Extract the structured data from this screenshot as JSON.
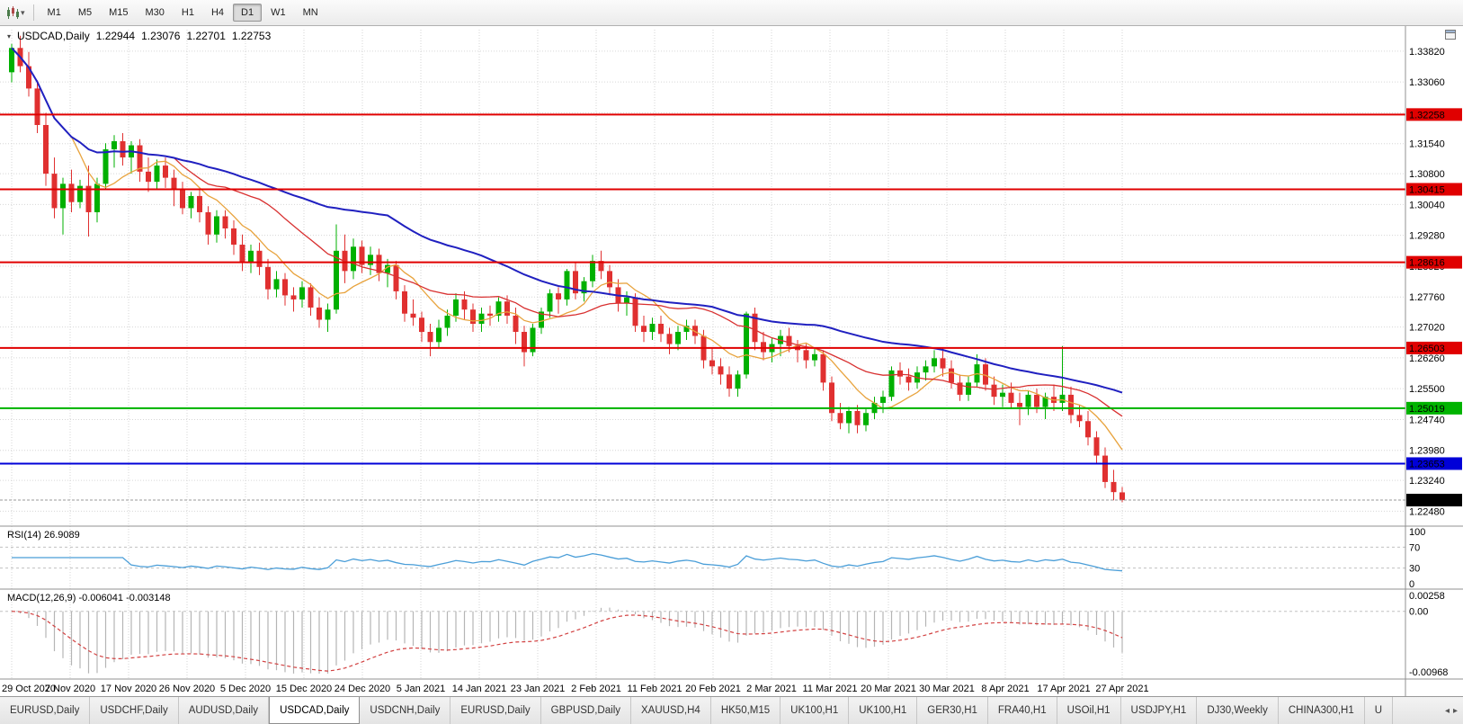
{
  "toolbar": {
    "timeframes": [
      "M1",
      "M5",
      "M15",
      "M30",
      "H1",
      "H4",
      "D1",
      "W1",
      "MN"
    ],
    "active_timeframe": "D1",
    "icons": [
      "candlestick-chart-icon",
      "caret-down-icon"
    ]
  },
  "chart_header": {
    "symbol_period": "USDCAD,Daily",
    "open": "1.22944",
    "high": "1.23076",
    "low": "1.22701",
    "close": "1.22753"
  },
  "levels": [
    {
      "label": "1.32258",
      "price": 1.32258,
      "color": "#e00000"
    },
    {
      "label": "1.30415",
      "price": 1.30415,
      "color": "#e00000"
    },
    {
      "label": "1.28616",
      "price": 1.28616,
      "color": "#e00000"
    },
    {
      "label": "1.26503",
      "price": 1.26503,
      "color": "#e00000"
    },
    {
      "label": "1.25019",
      "price": 1.25019,
      "color": "#00b300"
    },
    {
      "label": "1.23653",
      "price": 1.23653,
      "color": "#0000d8"
    }
  ],
  "current_price": {
    "label": "1.22753",
    "price": 1.22753,
    "badge_color": "#000000"
  },
  "indicators": {
    "rsi": {
      "label": "RSI(14) 26.9089",
      "period": 14,
      "value": 26.9089,
      "axis_ticks": [
        "100",
        "70",
        "30",
        "0"
      ],
      "dashed_levels": [
        70,
        30
      ],
      "line_color": "#4a9ed8"
    },
    "macd": {
      "label": "MACD(12,26,9) -0.006041 -0.003148",
      "fast": 12,
      "slow": 26,
      "signal_period": 9,
      "macd_value": "-0.006041",
      "signal_value": "-0.003148",
      "axis_ticks": [
        "0.00258",
        "0.00",
        "-0.00968"
      ],
      "hist_color": "#b5b5b5",
      "signal_color": "#d24040"
    }
  },
  "moving_averages": [
    {
      "name": "fast-ma",
      "period": 8,
      "color": "#e8a33d"
    },
    {
      "name": "medium-ma",
      "period": 20,
      "color": "#d83030"
    },
    {
      "name": "slow-ma",
      "period": 45,
      "color": "#2020c0"
    }
  ],
  "dates": [
    "29 Oct 2020",
    "7 Nov 2020",
    "17 Nov 2020",
    "26 Nov 2020",
    "5 Dec 2020",
    "15 Dec 2020",
    "24 Dec 2020",
    "5 Jan 2021",
    "14 Jan 2021",
    "23 Jan 2021",
    "2 Feb 2021",
    "11 Feb 2021",
    "20 Feb 2021",
    "2 Mar 2021",
    "11 Mar 2021",
    "20 Mar 2021",
    "30 Mar 2021",
    "8 Apr 2021",
    "17 Apr 2021",
    "27 Apr 2021"
  ],
  "tabs": {
    "active_index": 3,
    "scroll_icons": [
      "tabs-scroll-left-icon",
      "tabs-scroll-right-icon"
    ],
    "items": [
      {
        "label": "EURUSD,Daily"
      },
      {
        "label": "USDCHF,Daily"
      },
      {
        "label": "AUDUSD,Daily"
      },
      {
        "label": "USDCAD,Daily"
      },
      {
        "label": "USDCNH,Daily"
      },
      {
        "label": "EURUSD,Daily"
      },
      {
        "label": "GBPUSD,Daily"
      },
      {
        "label": "XAUUSD,H4"
      },
      {
        "label": "HK50,M15"
      },
      {
        "label": "UK100,H1"
      },
      {
        "label": "UK100,H1"
      },
      {
        "label": "GER30,H1"
      },
      {
        "label": "FRA40,H1"
      },
      {
        "label": "USOil,H1"
      },
      {
        "label": "USDJPY,H1"
      },
      {
        "label": "DJ30,Weekly"
      },
      {
        "label": "CHINA300,H1"
      },
      {
        "label": "U"
      }
    ]
  },
  "colors": {
    "up": "#00b000",
    "down": "#e03030",
    "grid": "#d6d6d6",
    "background": "#ffffff",
    "axis_line": "#909090"
  },
  "chart_data": {
    "type": "candlestick",
    "symbol": "USDCAD",
    "timeframe": "Daily",
    "title": "USDCAD,Daily 1.22944 1.23076 1.22701 1.22753",
    "x_range": [
      "29 Oct 2020",
      "30 Apr 2021"
    ],
    "y_ticks": [
      "1.33820",
      "1.33060",
      "1.32300",
      "1.31540",
      "1.30800",
      "1.30040",
      "1.29280",
      "1.28520",
      "1.27760",
      "1.27020",
      "1.26260",
      "1.25500",
      "1.24740",
      "1.23980",
      "1.23240",
      "1.22480"
    ],
    "y_limits": [
      1.222,
      1.3435
    ],
    "grid": true,
    "candles": [
      [
        1.333,
        1.34,
        1.3305,
        1.339
      ],
      [
        1.339,
        1.342,
        1.333,
        1.3345
      ],
      [
        1.3345,
        1.338,
        1.327,
        1.329
      ],
      [
        1.329,
        1.331,
        1.318,
        1.32
      ],
      [
        1.32,
        1.323,
        1.305,
        1.308
      ],
      [
        1.308,
        1.312,
        1.297,
        1.2995
      ],
      [
        1.2995,
        1.307,
        1.293,
        1.3055
      ],
      [
        1.3055,
        1.309,
        1.2985,
        1.301
      ],
      [
        1.301,
        1.3065,
        1.2995,
        1.305
      ],
      [
        1.305,
        1.31,
        1.2925,
        1.2985
      ],
      [
        1.2985,
        1.307,
        1.296,
        1.3055
      ],
      [
        1.3055,
        1.3155,
        1.304,
        1.314
      ],
      [
        1.314,
        1.3175,
        1.3095,
        1.316
      ],
      [
        1.316,
        1.318,
        1.31,
        1.312
      ],
      [
        1.312,
        1.316,
        1.308,
        1.315
      ],
      [
        1.315,
        1.3165,
        1.306,
        1.3085
      ],
      [
        1.3085,
        1.312,
        1.3035,
        1.306
      ],
      [
        1.306,
        1.3115,
        1.304,
        1.31
      ],
      [
        1.31,
        1.312,
        1.3045,
        1.307
      ],
      [
        1.307,
        1.309,
        1.3,
        1.304
      ],
      [
        1.304,
        1.306,
        1.298,
        1.2995
      ],
      [
        1.2995,
        1.3035,
        1.297,
        1.3025
      ],
      [
        1.3025,
        1.304,
        1.296,
        1.2985
      ],
      [
        1.2985,
        1.3,
        1.2905,
        1.293
      ],
      [
        1.293,
        1.299,
        1.291,
        1.2975
      ],
      [
        1.2975,
        1.299,
        1.292,
        1.2945
      ],
      [
        1.2945,
        1.2965,
        1.288,
        1.2905
      ],
      [
        1.2905,
        1.293,
        1.284,
        1.286
      ],
      [
        1.286,
        1.2905,
        1.2835,
        1.289
      ],
      [
        1.289,
        1.291,
        1.283,
        1.285
      ],
      [
        1.285,
        1.287,
        1.277,
        1.2795
      ],
      [
        1.2795,
        1.284,
        1.2775,
        1.282
      ],
      [
        1.282,
        1.2835,
        1.2755,
        1.278
      ],
      [
        1.278,
        1.28,
        1.274,
        1.277
      ],
      [
        1.277,
        1.2815,
        1.275,
        1.28
      ],
      [
        1.28,
        1.281,
        1.273,
        1.275
      ],
      [
        1.275,
        1.2775,
        1.27,
        1.272
      ],
      [
        1.272,
        1.276,
        1.269,
        1.2745
      ],
      [
        1.2745,
        1.2955,
        1.2735,
        1.289
      ],
      [
        1.289,
        1.293,
        1.281,
        1.284
      ],
      [
        1.284,
        1.292,
        1.282,
        1.29
      ],
      [
        1.29,
        1.2915,
        1.2835,
        1.2855
      ],
      [
        1.2855,
        1.29,
        1.283,
        1.288
      ],
      [
        1.288,
        1.2895,
        1.2815,
        1.2835
      ],
      [
        1.2835,
        1.287,
        1.28,
        1.2855
      ],
      [
        1.2855,
        1.2865,
        1.277,
        1.279
      ],
      [
        1.279,
        1.2805,
        1.2715,
        1.2735
      ],
      [
        1.2735,
        1.277,
        1.2705,
        1.2725
      ],
      [
        1.2725,
        1.274,
        1.2665,
        1.269
      ],
      [
        1.269,
        1.271,
        1.263,
        1.2665
      ],
      [
        1.2665,
        1.272,
        1.265,
        1.27
      ],
      [
        1.27,
        1.2745,
        1.268,
        1.273
      ],
      [
        1.273,
        1.2785,
        1.2715,
        1.277
      ],
      [
        1.277,
        1.279,
        1.272,
        1.2745
      ],
      [
        1.2745,
        1.276,
        1.269,
        1.271
      ],
      [
        1.271,
        1.275,
        1.269,
        1.2735
      ],
      [
        1.2735,
        1.2755,
        1.2705,
        1.273
      ],
      [
        1.273,
        1.2775,
        1.2715,
        1.2765
      ],
      [
        1.2765,
        1.278,
        1.271,
        1.273
      ],
      [
        1.273,
        1.275,
        1.266,
        1.269
      ],
      [
        1.269,
        1.2705,
        1.2605,
        1.264
      ],
      [
        1.264,
        1.271,
        1.263,
        1.27
      ],
      [
        1.27,
        1.275,
        1.2685,
        1.274
      ],
      [
        1.274,
        1.2795,
        1.2725,
        1.2785
      ],
      [
        1.2785,
        1.28,
        1.2735,
        1.277
      ],
      [
        1.277,
        1.2845,
        1.2755,
        1.284
      ],
      [
        1.284,
        1.286,
        1.277,
        1.2785
      ],
      [
        1.2785,
        1.2825,
        1.2765,
        1.2815
      ],
      [
        1.2815,
        1.288,
        1.28,
        1.2865
      ],
      [
        1.2865,
        1.289,
        1.282,
        1.284
      ],
      [
        1.284,
        1.2855,
        1.278,
        1.28
      ],
      [
        1.28,
        1.282,
        1.274,
        1.276
      ],
      [
        1.276,
        1.279,
        1.273,
        1.2775
      ],
      [
        1.2775,
        1.2785,
        1.269,
        1.2705
      ],
      [
        1.2705,
        1.273,
        1.2665,
        1.269
      ],
      [
        1.269,
        1.2725,
        1.267,
        1.271
      ],
      [
        1.271,
        1.273,
        1.2665,
        1.2685
      ],
      [
        1.2685,
        1.27,
        1.2635,
        1.266
      ],
      [
        1.266,
        1.2705,
        1.2645,
        1.269
      ],
      [
        1.269,
        1.272,
        1.267,
        1.2705
      ],
      [
        1.2705,
        1.272,
        1.266,
        1.268
      ],
      [
        1.268,
        1.2695,
        1.26,
        1.262
      ],
      [
        1.262,
        1.265,
        1.2585,
        1.2605
      ],
      [
        1.2605,
        1.2625,
        1.256,
        1.2585
      ],
      [
        1.2585,
        1.2605,
        1.253,
        1.255
      ],
      [
        1.255,
        1.2595,
        1.253,
        1.2585
      ],
      [
        1.2585,
        1.274,
        1.2575,
        1.2735
      ],
      [
        1.2735,
        1.275,
        1.2645,
        1.2665
      ],
      [
        1.2665,
        1.269,
        1.262,
        1.264
      ],
      [
        1.264,
        1.2675,
        1.2615,
        1.266
      ],
      [
        1.266,
        1.2695,
        1.263,
        1.268
      ],
      [
        1.268,
        1.27,
        1.264,
        1.2655
      ],
      [
        1.2655,
        1.267,
        1.2615,
        1.2645
      ],
      [
        1.2645,
        1.266,
        1.26,
        1.262
      ],
      [
        1.262,
        1.265,
        1.2605,
        1.2635
      ],
      [
        1.2635,
        1.2645,
        1.2545,
        1.2565
      ],
      [
        1.2565,
        1.258,
        1.247,
        1.249
      ],
      [
        1.249,
        1.2515,
        1.245,
        1.2465
      ],
      [
        1.2465,
        1.2505,
        1.244,
        1.2495
      ],
      [
        1.2495,
        1.251,
        1.244,
        1.246
      ],
      [
        1.246,
        1.25,
        1.2445,
        1.249
      ],
      [
        1.249,
        1.253,
        1.2475,
        1.2515
      ],
      [
        1.2515,
        1.2545,
        1.249,
        1.253
      ],
      [
        1.253,
        1.2605,
        1.252,
        1.2595
      ],
      [
        1.2595,
        1.2615,
        1.256,
        1.258
      ],
      [
        1.258,
        1.26,
        1.2545,
        1.2565
      ],
      [
        1.2565,
        1.2605,
        1.255,
        1.259
      ],
      [
        1.259,
        1.262,
        1.257,
        1.2605
      ],
      [
        1.2605,
        1.2645,
        1.259,
        1.2625
      ],
      [
        1.2625,
        1.265,
        1.258,
        1.26
      ],
      [
        1.26,
        1.262,
        1.255,
        1.2565
      ],
      [
        1.2565,
        1.2585,
        1.252,
        1.2535
      ],
      [
        1.2535,
        1.258,
        1.252,
        1.2565
      ],
      [
        1.2565,
        1.2635,
        1.2555,
        1.261
      ],
      [
        1.261,
        1.2625,
        1.2545,
        1.256
      ],
      [
        1.256,
        1.258,
        1.251,
        1.253
      ],
      [
        1.253,
        1.256,
        1.2505,
        1.254
      ],
      [
        1.254,
        1.2565,
        1.25,
        1.2515
      ],
      [
        1.2515,
        1.254,
        1.246,
        1.2505
      ],
      [
        1.2505,
        1.2545,
        1.2485,
        1.2535
      ],
      [
        1.2535,
        1.255,
        1.249,
        1.2505
      ],
      [
        1.2505,
        1.254,
        1.2475,
        1.253
      ],
      [
        1.253,
        1.256,
        1.2495,
        1.2515
      ],
      [
        1.2515,
        1.2655,
        1.2495,
        1.2535
      ],
      [
        1.2535,
        1.2555,
        1.2465,
        1.2485
      ],
      [
        1.2485,
        1.251,
        1.2455,
        1.247
      ],
      [
        1.247,
        1.2495,
        1.241,
        1.243
      ],
      [
        1.243,
        1.2445,
        1.2365,
        1.2385
      ],
      [
        1.2385,
        1.2405,
        1.2305,
        1.232
      ],
      [
        1.232,
        1.235,
        1.2275,
        1.2295
      ],
      [
        1.22944,
        1.23076,
        1.22701,
        1.22753
      ]
    ]
  }
}
